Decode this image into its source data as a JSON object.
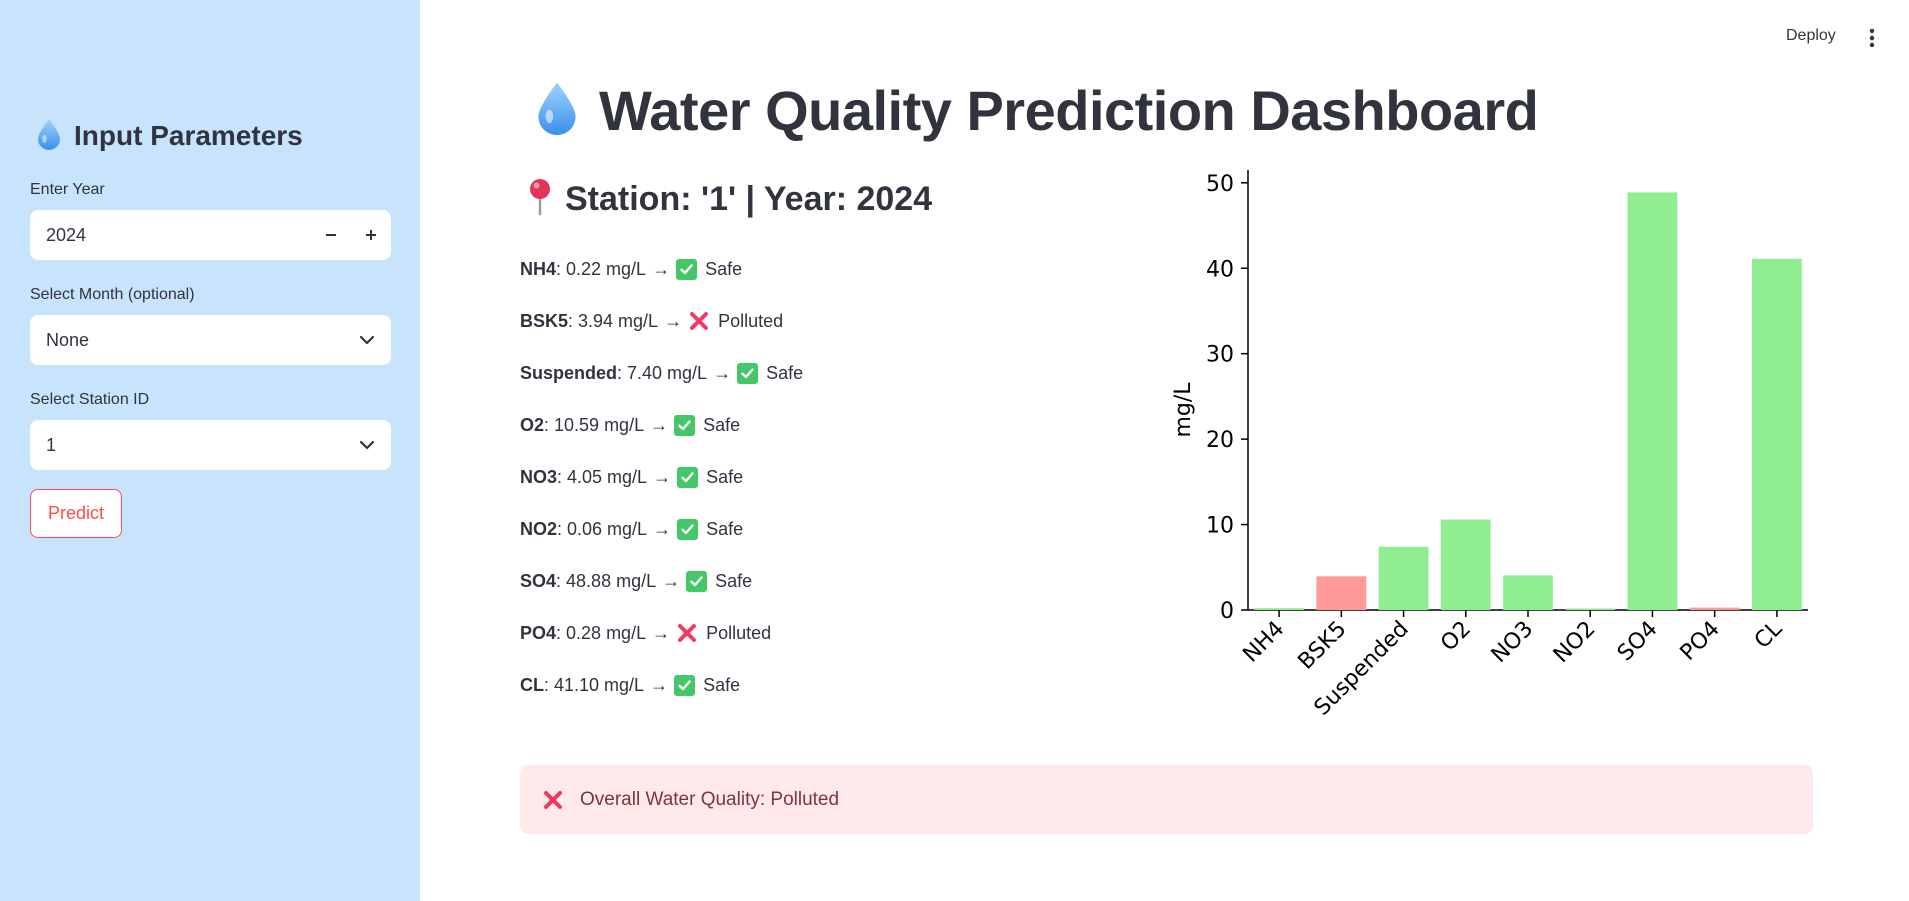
{
  "topbar": {
    "deploy_label": "Deploy"
  },
  "sidebar": {
    "header": "Input Parameters",
    "year_label": "Enter Year",
    "year_value": "2024",
    "month_label": "Select Month (optional)",
    "month_value": "None",
    "station_label": "Select Station ID",
    "station_value": "1",
    "predict_label": "Predict"
  },
  "main": {
    "title": "Water Quality Prediction Dashboard",
    "station_heading": "Station: '1' | Year: 2024",
    "params": [
      {
        "name": "NH4",
        "value": ": 0.22 mg/L",
        "status": "Safe",
        "safe": true
      },
      {
        "name": "BSK5",
        "value": ": 3.94 mg/L",
        "status": "Polluted",
        "safe": false
      },
      {
        "name": "Suspended",
        "value": ": 7.40 mg/L",
        "status": "Safe",
        "safe": true
      },
      {
        "name": "O2",
        "value": ": 10.59 mg/L",
        "status": "Safe",
        "safe": true
      },
      {
        "name": "NO3",
        "value": ": 4.05 mg/L",
        "status": "Safe",
        "safe": true
      },
      {
        "name": "NO2",
        "value": ": 0.06 mg/L",
        "status": "Safe",
        "safe": true
      },
      {
        "name": "SO4",
        "value": ": 48.88 mg/L",
        "status": "Safe",
        "safe": true
      },
      {
        "name": "PO4",
        "value": ": 0.28 mg/L",
        "status": "Polluted",
        "safe": false
      },
      {
        "name": "CL",
        "value": ": 41.10 mg/L",
        "status": "Safe",
        "safe": true
      }
    ],
    "arrow": "→",
    "overall_text": "Overall Water Quality: Polluted"
  },
  "colors": {
    "safe_bar": "#90ee90",
    "polluted_bar": "#ff9999",
    "sidebar_bg": "#c8e3fc",
    "accent": "#ff4b4b"
  },
  "chart_data": {
    "type": "bar",
    "categories": [
      "NH4",
      "BSK5",
      "Suspended",
      "O2",
      "NO3",
      "NO2",
      "SO4",
      "PO4",
      "CL"
    ],
    "values": [
      0.22,
      3.94,
      7.4,
      10.59,
      4.05,
      0.06,
      48.88,
      0.28,
      41.1
    ],
    "bar_status": [
      "safe",
      "polluted",
      "safe",
      "safe",
      "safe",
      "safe",
      "safe",
      "polluted",
      "safe"
    ],
    "ylabel": "mg/L",
    "xlabel": "",
    "ylim": [
      0,
      51.5
    ],
    "yticks": [
      0,
      10,
      20,
      30,
      40,
      50
    ],
    "grid": false
  }
}
